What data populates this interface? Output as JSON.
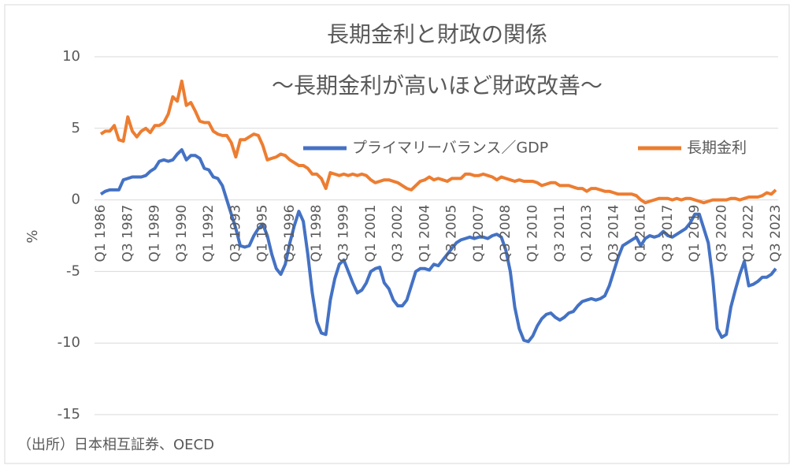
{
  "chart_data": {
    "type": "line",
    "title": "長期金利と財政の関係",
    "subtitle": "～長期金利が高いほど財政改善～",
    "y_label": "%",
    "source": "（出所）日本相互証券、OECD",
    "ylim": [
      -15,
      10
    ],
    "yticks": [
      -15,
      -10,
      -5,
      0,
      5,
      10
    ],
    "grid": true,
    "legend": "top-right",
    "categories": [
      "Q1 1986",
      null,
      null,
      null,
      null,
      null,
      "Q3 1987",
      null,
      null,
      null,
      null,
      null,
      "Q1 1989",
      null,
      null,
      null,
      null,
      null,
      "Q3 1990",
      null,
      null,
      null,
      null,
      null,
      "Q1 1992",
      null,
      null,
      null,
      null,
      null,
      "Q3 1993",
      null,
      null,
      null,
      null,
      null,
      "Q1 1995",
      null,
      null,
      null,
      null,
      null,
      "Q3 1996",
      null,
      null,
      null,
      null,
      null,
      "Q1 1998",
      null,
      null,
      null,
      null,
      null,
      "Q3 1999",
      null,
      null,
      null,
      null,
      null,
      "Q1 2001",
      null,
      null,
      null,
      null,
      null,
      "Q3 2002",
      null,
      null,
      null,
      null,
      null,
      "Q1 2004",
      null,
      null,
      null,
      null,
      null,
      "Q3 2005",
      null,
      null,
      null,
      null,
      null,
      "Q1 2007",
      null,
      null,
      null,
      null,
      null,
      "Q3 2008",
      null,
      null,
      null,
      null,
      null,
      "Q1 2010",
      null,
      null,
      null,
      null,
      null,
      "Q3 2011",
      null,
      null,
      null,
      null,
      null,
      "Q1 2013",
      null,
      null,
      null,
      null,
      null,
      "Q3 2014",
      null,
      null,
      null,
      null,
      null,
      "Q1 2016",
      null,
      null,
      null,
      null,
      null,
      "Q3 2017",
      null,
      null,
      null,
      null,
      null,
      "Q1 2019",
      null,
      null,
      null,
      null,
      null,
      "Q3 2020",
      null,
      null,
      null,
      null,
      null,
      "Q1 2022",
      null,
      null,
      null,
      null,
      null,
      "Q3 2023"
    ],
    "series": [
      {
        "name": "プライマリーバランス／GDP",
        "color": "#4472c4",
        "values": [
          0.4,
          0.6,
          0.7,
          0.7,
          0.7,
          1.4,
          1.5,
          1.6,
          1.6,
          1.6,
          1.7,
          2.0,
          2.2,
          2.7,
          2.8,
          2.7,
          2.8,
          3.2,
          3.5,
          2.8,
          3.1,
          3.1,
          2.9,
          2.2,
          2.1,
          1.6,
          1.5,
          1.0,
          0.0,
          -1.0,
          -2.0,
          -3.2,
          -3.3,
          -3.2,
          -2.5,
          -2.0,
          -1.7,
          -2.5,
          -3.8,
          -4.8,
          -5.2,
          -4.5,
          -3.0,
          -1.8,
          -0.8,
          -1.5,
          -3.8,
          -6.5,
          -8.5,
          -9.3,
          -9.4,
          -7.0,
          -5.5,
          -4.5,
          -4.2,
          -5.0,
          -5.8,
          -6.5,
          -6.3,
          -5.8,
          -5.0,
          -4.8,
          -4.7,
          -5.8,
          -6.2,
          -7.0,
          -7.4,
          -7.4,
          -7.0,
          -6.0,
          -5.0,
          -4.8,
          -4.8,
          -4.9,
          -4.5,
          -4.6,
          -4.2,
          -3.8,
          -3.4,
          -3.0,
          -2.8,
          -2.7,
          -2.6,
          -2.7,
          -2.6,
          -2.6,
          -2.7,
          -2.5,
          -2.4,
          -2.6,
          -3.5,
          -5.0,
          -7.5,
          -9.0,
          -9.8,
          -9.9,
          -9.5,
          -8.8,
          -8.3,
          -8.0,
          -7.9,
          -8.2,
          -8.4,
          -8.2,
          -7.9,
          -7.8,
          -7.4,
          -7.1,
          -7.0,
          -6.9,
          -7.0,
          -6.9,
          -6.7,
          -6.0,
          -5.0,
          -4.0,
          -3.2,
          -3.0,
          -2.8,
          -2.6,
          -3.2,
          -2.7,
          -2.5,
          -2.6,
          -2.5,
          -2.2,
          -2.5,
          -2.6,
          -2.4,
          -2.2,
          -2.0,
          -1.6,
          -1.0,
          -1.0,
          -2.0,
          -3.0,
          -5.5,
          -9.0,
          -9.6,
          -9.4,
          -7.5,
          -6.3,
          -5.2,
          -4.3,
          -6.0,
          -5.9,
          -5.7,
          -5.4,
          -5.4,
          -5.2,
          -4.8
        ]
      },
      {
        "name": "長期金利",
        "color": "#ed7d31",
        "values": [
          4.6,
          4.8,
          4.8,
          5.2,
          4.2,
          4.1,
          5.8,
          4.8,
          4.4,
          4.8,
          5.0,
          4.7,
          5.2,
          5.2,
          5.4,
          6.0,
          7.2,
          6.9,
          8.3,
          6.6,
          6.8,
          6.2,
          5.5,
          5.4,
          5.4,
          4.8,
          4.6,
          4.5,
          4.5,
          4.0,
          3.0,
          4.2,
          4.2,
          4.4,
          4.6,
          4.5,
          3.8,
          2.8,
          2.9,
          3.0,
          3.2,
          3.1,
          2.8,
          2.6,
          2.4,
          2.4,
          2.2,
          1.8,
          1.8,
          1.5,
          0.8,
          1.9,
          1.8,
          1.7,
          1.8,
          1.7,
          1.8,
          1.7,
          1.8,
          1.7,
          1.4,
          1.2,
          1.3,
          1.4,
          1.4,
          1.3,
          1.2,
          1.0,
          0.8,
          0.7,
          1.0,
          1.3,
          1.4,
          1.6,
          1.4,
          1.5,
          1.4,
          1.3,
          1.5,
          1.5,
          1.5,
          1.8,
          1.8,
          1.7,
          1.7,
          1.8,
          1.7,
          1.6,
          1.4,
          1.6,
          1.5,
          1.4,
          1.3,
          1.4,
          1.3,
          1.3,
          1.3,
          1.2,
          1.0,
          1.1,
          1.2,
          1.2,
          1.0,
          1.0,
          1.0,
          0.9,
          0.8,
          0.8,
          0.6,
          0.8,
          0.8,
          0.7,
          0.6,
          0.6,
          0.5,
          0.4,
          0.4,
          0.4,
          0.4,
          0.3,
          0.0,
          -0.2,
          -0.1,
          0.0,
          0.1,
          0.1,
          0.1,
          0.0,
          0.1,
          0.0,
          0.1,
          0.1,
          0.0,
          -0.1,
          -0.2,
          -0.1,
          0.0,
          0.0,
          0.0,
          0.0,
          0.1,
          0.1,
          0.0,
          0.1,
          0.2,
          0.2,
          0.2,
          0.3,
          0.5,
          0.4,
          0.7
        ]
      }
    ]
  }
}
